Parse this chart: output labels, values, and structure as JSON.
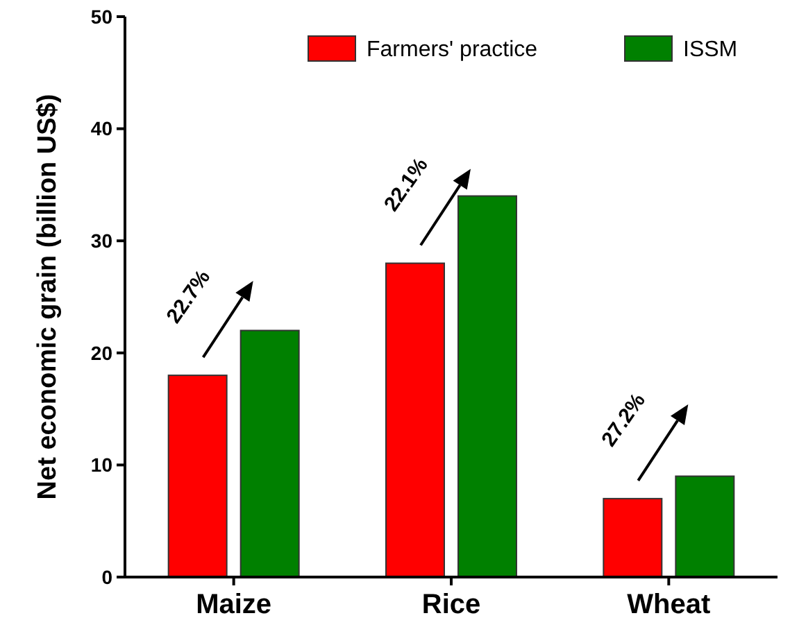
{
  "chart_data": {
    "type": "bar",
    "ylabel": "Net economic grain (billion US$)",
    "categories": [
      "Maize",
      "Rice",
      "Wheat"
    ],
    "series": [
      {
        "name": "Farmers' practice",
        "color": "#ff0000",
        "values": [
          18,
          28,
          7
        ]
      },
      {
        "name": "ISSM",
        "color": "#008000",
        "values": [
          22,
          34,
          9
        ]
      }
    ],
    "ylim": [
      0,
      50
    ],
    "yticks": [
      0,
      10,
      20,
      30,
      40,
      50
    ],
    "legend": "top right",
    "annotations": [
      "22.7%",
      "22.1%",
      "27.2%"
    ]
  }
}
